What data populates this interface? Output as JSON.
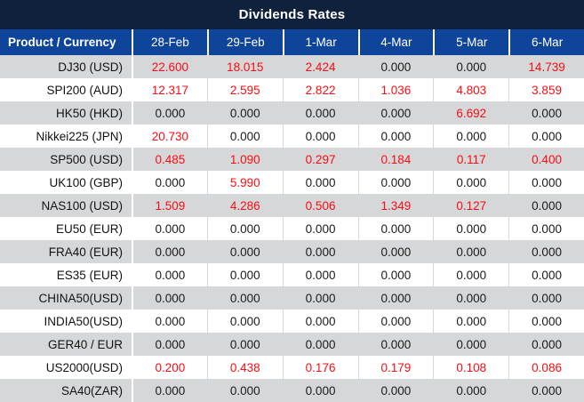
{
  "title": "Dividends Rates",
  "colors": {
    "title_bg": "#10213D",
    "header_bg": "#0E459B",
    "row_alt_bg": "#D5D7D9",
    "nonzero_value": "#F90D12",
    "zero_value": "#1A1A1A"
  },
  "table": {
    "product_header": "Product / Currency",
    "date_headers": [
      "28-Feb",
      "29-Feb",
      "1-Mar",
      "4-Mar",
      "5-Mar",
      "6-Mar"
    ],
    "rows": [
      {
        "product": "DJ30 (USD)",
        "values": [
          "22.600",
          "18.015",
          "2.424",
          "0.000",
          "0.000",
          "14.739"
        ]
      },
      {
        "product": "SPI200 (AUD)",
        "values": [
          "12.317",
          "2.595",
          "2.822",
          "1.036",
          "4.803",
          "3.859"
        ]
      },
      {
        "product": "HK50 (HKD)",
        "values": [
          "0.000",
          "0.000",
          "0.000",
          "0.000",
          "6.692",
          "0.000"
        ]
      },
      {
        "product": "Nikkei225 (JPN)",
        "values": [
          "20.730",
          "0.000",
          "0.000",
          "0.000",
          "0.000",
          "0.000"
        ]
      },
      {
        "product": "SP500 (USD)",
        "values": [
          "0.485",
          "1.090",
          "0.297",
          "0.184",
          "0.117",
          "0.400"
        ]
      },
      {
        "product": "UK100 (GBP)",
        "values": [
          "0.000",
          "5.990",
          "0.000",
          "0.000",
          "0.000",
          "0.000"
        ]
      },
      {
        "product": "NAS100 (USD)",
        "values": [
          "1.509",
          "4.286",
          "0.506",
          "1.349",
          "0.127",
          "0.000"
        ]
      },
      {
        "product": "EU50 (EUR)",
        "values": [
          "0.000",
          "0.000",
          "0.000",
          "0.000",
          "0.000",
          "0.000"
        ]
      },
      {
        "product": "FRA40 (EUR)",
        "values": [
          "0.000",
          "0.000",
          "0.000",
          "0.000",
          "0.000",
          "0.000"
        ]
      },
      {
        "product": "ES35 (EUR)",
        "values": [
          "0.000",
          "0.000",
          "0.000",
          "0.000",
          "0.000",
          "0.000"
        ]
      },
      {
        "product": "CHINA50(USD)",
        "values": [
          "0.000",
          "0.000",
          "0.000",
          "0.000",
          "0.000",
          "0.000"
        ]
      },
      {
        "product": "INDIA50(USD)",
        "values": [
          "0.000",
          "0.000",
          "0.000",
          "0.000",
          "0.000",
          "0.000"
        ]
      },
      {
        "product": "GER40 / EUR",
        "values": [
          "0.000",
          "0.000",
          "0.000",
          "0.000",
          "0.000",
          "0.000"
        ]
      },
      {
        "product": "US2000(USD)",
        "values": [
          "0.200",
          "0.438",
          "0.176",
          "0.179",
          "0.108",
          "0.086"
        ]
      },
      {
        "product": "SA40(ZAR)",
        "values": [
          "0.000",
          "0.000",
          "0.000",
          "0.000",
          "0.000",
          "0.000"
        ]
      }
    ]
  }
}
